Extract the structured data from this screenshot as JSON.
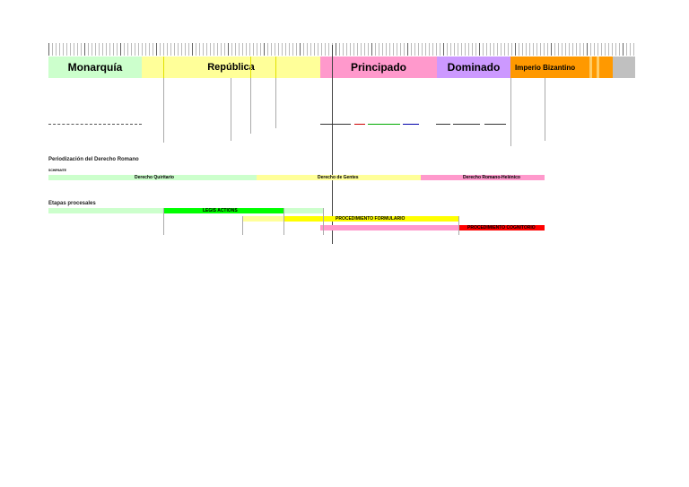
{
  "eras": [
    {
      "name": "Monarquía",
      "color": "#ccffcc"
    },
    {
      "name": "República",
      "color": "#ffff99"
    },
    {
      "name": "Principado",
      "color": "#ff99cc"
    },
    {
      "name": "Dominado",
      "color": "#cc99ff"
    },
    {
      "name": "Imperio Bizantino",
      "color": "#ff9900"
    }
  ],
  "colors": {
    "grey": "#c0c0c0",
    "green": "#00ff00",
    "yellow": "#ffff00",
    "red": "#ff0000",
    "pink": "#ff99cc",
    "lightgreen": "#ccffcc",
    "lightyellow": "#ffff99"
  },
  "periodizacion": {
    "title": "Periodización del Derecho Romano",
    "subtitle": "SCHIPANTE",
    "quiritario": "Derecho Quiritario",
    "gentes": "Derecho de Gentes",
    "romano_helenico": "Derecho Romano-Helénico"
  },
  "etapas": {
    "title": "Etapas procesales",
    "legis": "LEGIS ACTIONS",
    "formulario": "PROCEDIMIENTO FORMULARIO",
    "cognitorio": "PROCEDIMIENTO COGNITORIO"
  }
}
